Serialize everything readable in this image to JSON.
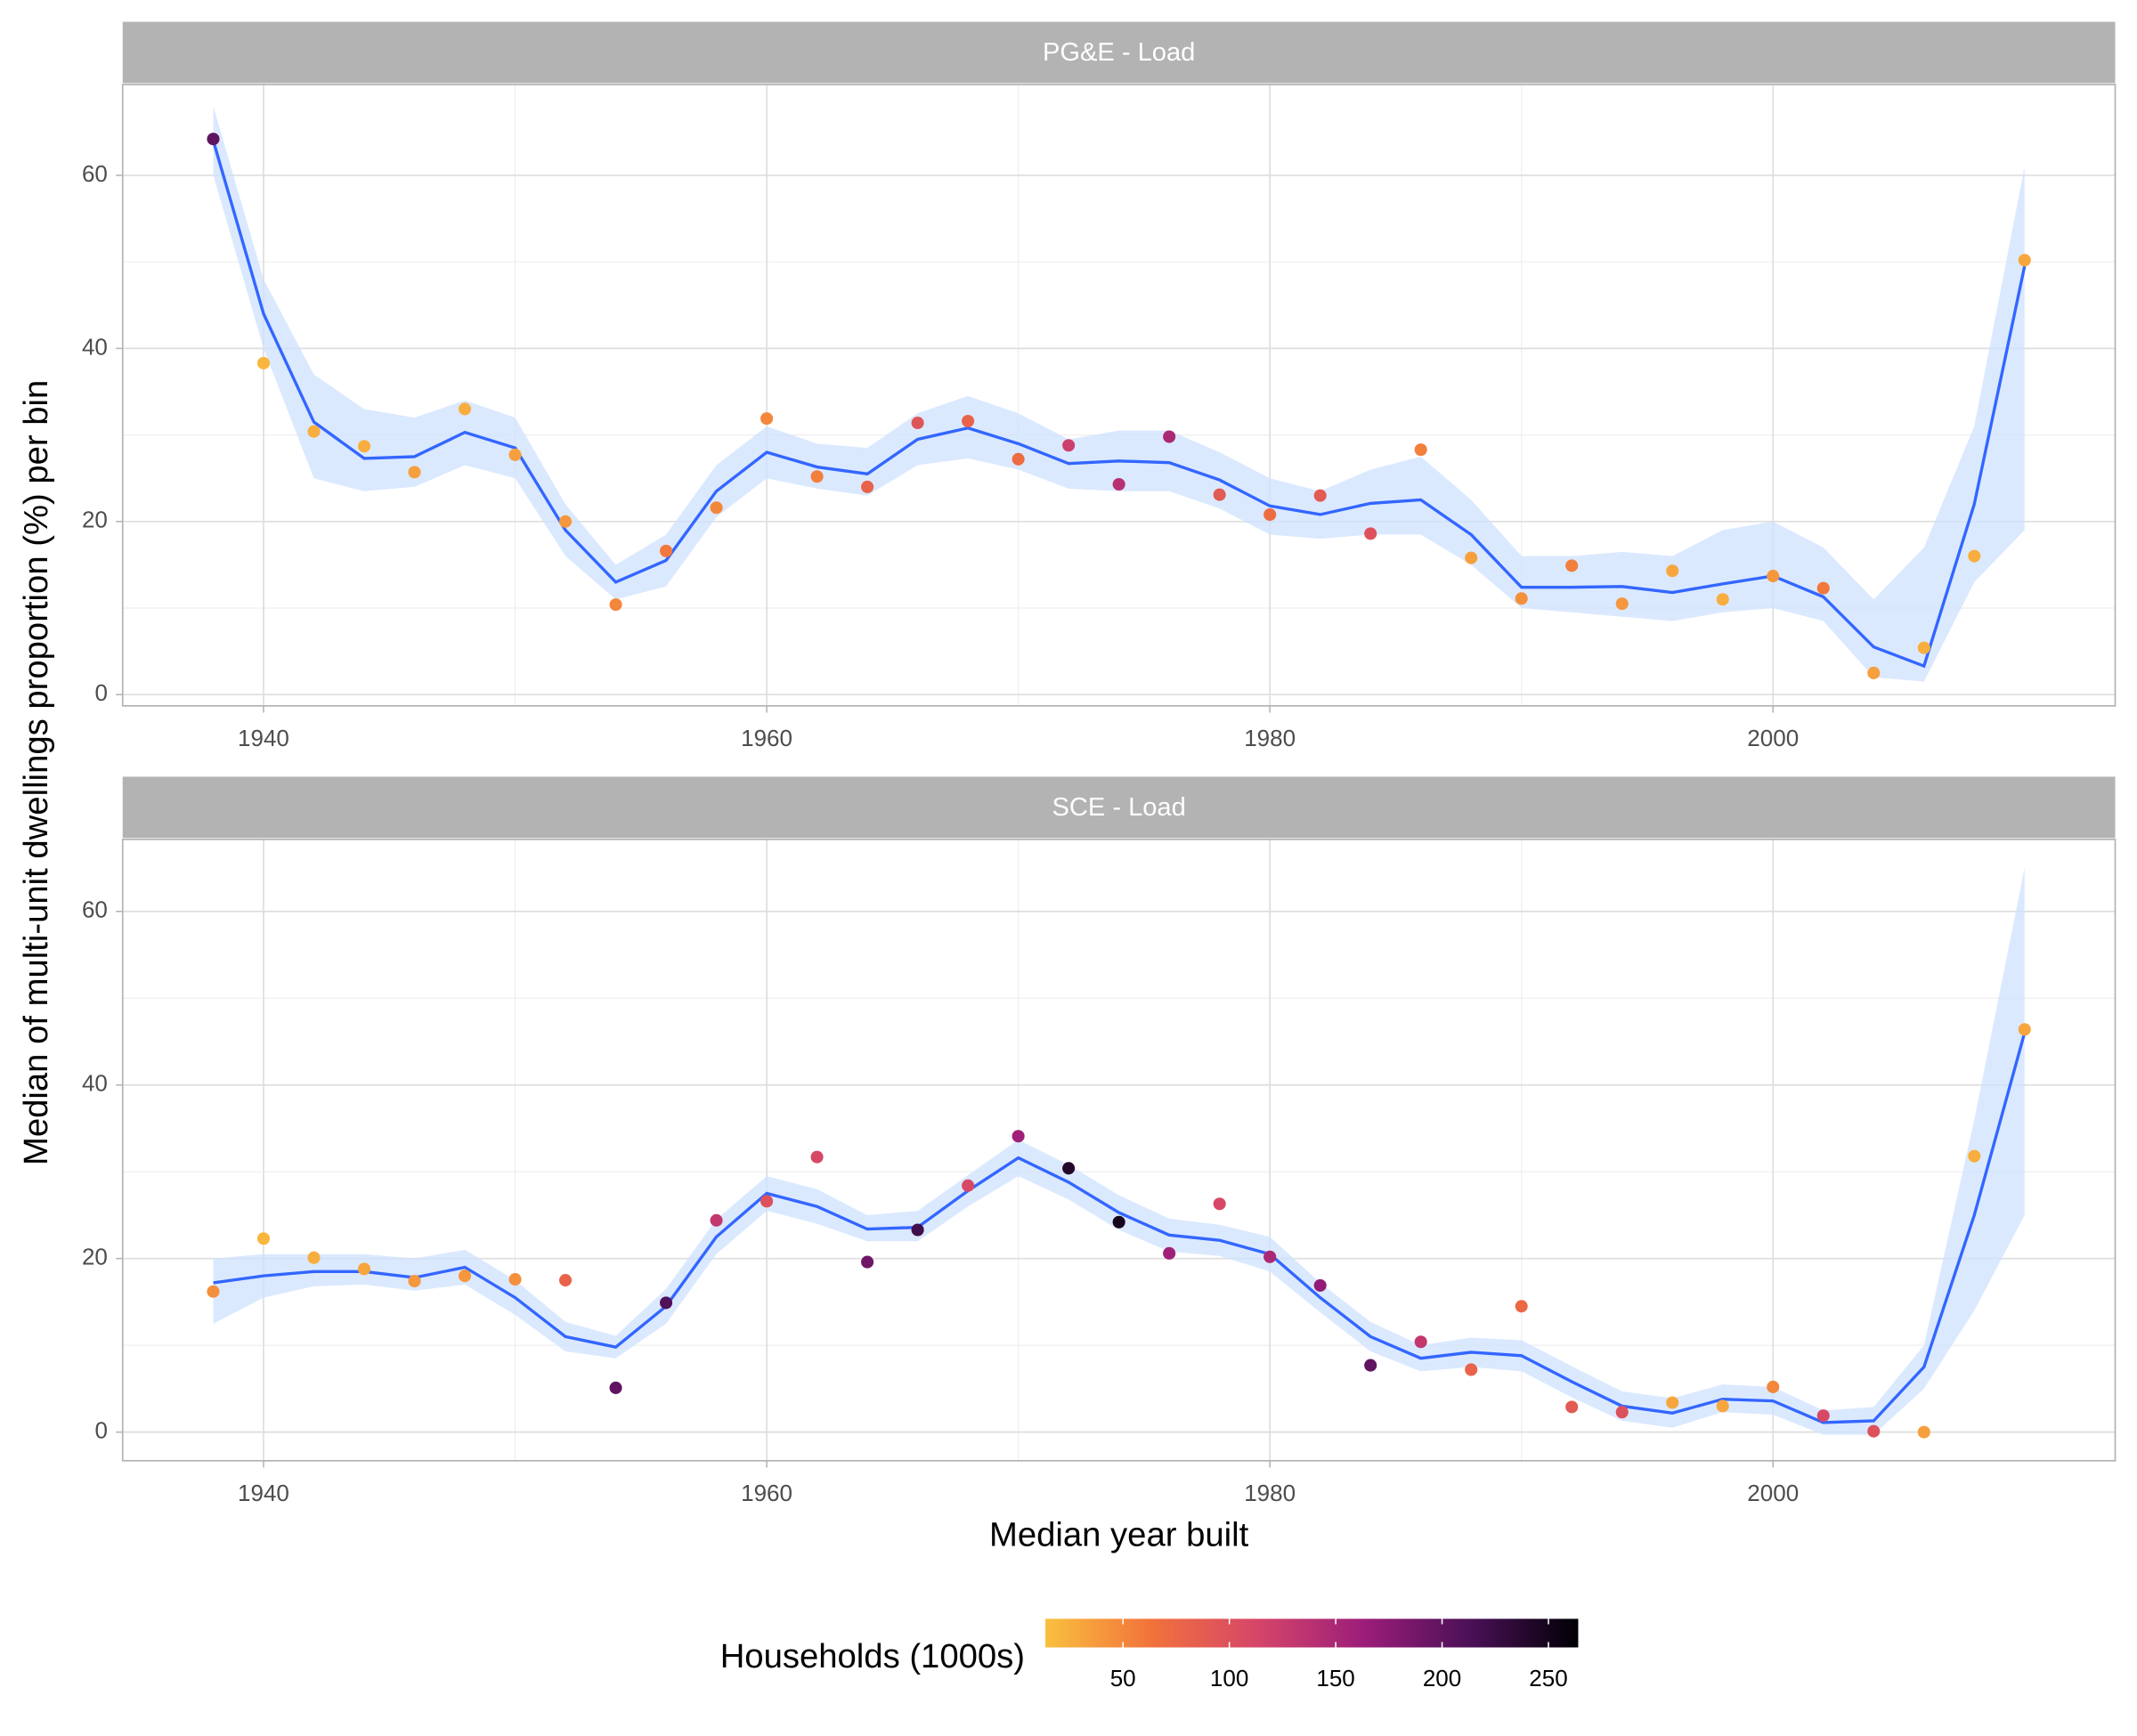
{
  "x_label": "Median year built",
  "y_label": "Median of multi-unit dwellings proportion (%) per bin",
  "colorbar": {
    "title": "Households (1000s)",
    "ticks": [
      50,
      100,
      150,
      200,
      250
    ],
    "lim": [
      13.5,
      264
    ],
    "colors": [
      "#fac03f",
      "#f1723b",
      "#d5456a",
      "#9b1d79",
      "#4a1057",
      "#000004"
    ]
  },
  "chart_data": [
    {
      "type": "scatter",
      "title": "PG&E - Load",
      "x": [
        1938,
        1940,
        1942,
        1944,
        1946,
        1948,
        1950,
        1952,
        1954,
        1956,
        1958,
        1960,
        1962,
        1964,
        1966,
        1968,
        1970,
        1972,
        1974,
        1976,
        1978,
        1980,
        1982,
        1984,
        1986,
        1988,
        1990,
        1992,
        1994,
        1996,
        1998,
        2000,
        2002,
        2004,
        2006,
        2008,
        2010
      ],
      "xlim": [
        1934.4,
        2013.6
      ],
      "xticks": [
        1940,
        1960,
        1980,
        2000
      ],
      "ylim": [
        -1.3,
        70.5
      ],
      "yticks": [
        0,
        20,
        40,
        60
      ],
      "grid": true,
      "points": {
        "values": [
          64.2,
          38.3,
          30.4,
          28.7,
          25.7,
          33.0,
          27.7,
          20.0,
          10.4,
          16.6,
          21.6,
          31.9,
          25.2,
          24.0,
          31.4,
          31.6,
          27.2,
          28.8,
          24.3,
          29.8,
          23.1,
          20.8,
          23.0,
          18.6,
          28.3,
          15.8,
          11.1,
          14.9,
          10.5,
          14.3,
          11.0,
          13.7,
          12.3,
          2.5,
          5.4,
          16.0,
          50.2
        ],
        "households": [
          200,
          20,
          25,
          25,
          35,
          25,
          35,
          40,
          50,
          60,
          50,
          50,
          55,
          80,
          95,
          80,
          70,
          120,
          140,
          150,
          90,
          70,
          90,
          100,
          55,
          35,
          45,
          55,
          40,
          30,
          25,
          40,
          60,
          35,
          25,
          25,
          30
        ]
      },
      "smooth": {
        "color": "#3366ff",
        "band_color": "#cfe2ff",
        "values": [
          64,
          44,
          31.5,
          27.3,
          27.5,
          30.3,
          28.5,
          19,
          13,
          15.5,
          23.5,
          28,
          26.3,
          25.5,
          29.5,
          30.8,
          29,
          26.7,
          27,
          26.8,
          24.8,
          21.8,
          20.8,
          22.1,
          22.5,
          18.5,
          12.4,
          12.4,
          12.5,
          11.8,
          12.8,
          13.7,
          11.3,
          5.5,
          3.3,
          22,
          49.5
        ],
        "lower": [
          60,
          40,
          25,
          23.5,
          24,
          26.5,
          25,
          16,
          11,
          12.5,
          20.5,
          25,
          23.8,
          23,
          26.5,
          27.3,
          26,
          23.8,
          23.5,
          23.5,
          21.5,
          18.5,
          18,
          18.5,
          18.5,
          15,
          10,
          9.5,
          9,
          8.5,
          9.5,
          10,
          8.5,
          2,
          1.5,
          13,
          19
        ],
        "upper": [
          68,
          48,
          37,
          33,
          32,
          34,
          32,
          22,
          15,
          18.5,
          26.5,
          31,
          29,
          28.5,
          32.5,
          34.5,
          32.5,
          29.5,
          30.5,
          30.5,
          28,
          25,
          23.5,
          26,
          27.5,
          22.5,
          16,
          16,
          16.5,
          16,
          19,
          20,
          17,
          11,
          17,
          31,
          61
        ]
      }
    },
    {
      "type": "scatter",
      "title": "SCE - Load",
      "x": [
        1938,
        1940,
        1942,
        1944,
        1946,
        1948,
        1950,
        1952,
        1954,
        1956,
        1958,
        1960,
        1962,
        1964,
        1966,
        1968,
        1970,
        1972,
        1974,
        1976,
        1978,
        1980,
        1982,
        1984,
        1986,
        1988,
        1990,
        1992,
        1994,
        1996,
        1998,
        2000,
        2002,
        2004,
        2006,
        2008,
        2010
      ],
      "xlim": [
        1934.4,
        2013.6
      ],
      "xticks": [
        1940,
        1960,
        1980,
        2000
      ],
      "ylim": [
        -3.3,
        68.3
      ],
      "yticks": [
        0,
        20,
        40,
        60
      ],
      "grid": true,
      "points": {
        "values": [
          16.2,
          22.3,
          20.1,
          18.8,
          17.4,
          18.0,
          17.6,
          17.5,
          5.1,
          14.9,
          24.4,
          26.6,
          31.7,
          19.6,
          23.3,
          28.4,
          34.1,
          30.4,
          24.2,
          20.6,
          26.3,
          20.2,
          16.9,
          7.7,
          10.4,
          7.2,
          14.5,
          2.9,
          2.3,
          3.4,
          3.0,
          5.2,
          1.9,
          0.1,
          0.0,
          31.8,
          46.4
        ],
        "households": [
          45,
          20,
          25,
          30,
          40,
          40,
          45,
          80,
          200,
          210,
          130,
          100,
          110,
          190,
          220,
          110,
          160,
          240,
          250,
          160,
          110,
          150,
          170,
          200,
          130,
          80,
          75,
          90,
          100,
          30,
          30,
          50,
          110,
          100,
          35,
          25,
          30
        ]
      },
      "smooth": {
        "color": "#3366ff",
        "band_color": "#cfe2ff",
        "values": [
          17.2,
          18.0,
          18.5,
          18.5,
          17.8,
          19.0,
          15.5,
          11,
          9.8,
          14.5,
          22.5,
          27.5,
          26,
          23.4,
          23.6,
          27.8,
          31.6,
          28.8,
          25.3,
          22.7,
          22.1,
          20.5,
          15.5,
          11,
          8.5,
          9.2,
          8.8,
          5.8,
          3.0,
          2.2,
          3.8,
          3.6,
          1.1,
          1.3,
          7.5,
          25,
          46
        ],
        "lower": [
          12.5,
          15.5,
          16.8,
          17,
          16.3,
          17,
          13.5,
          9.3,
          8.5,
          12.5,
          20.5,
          25.5,
          24,
          22,
          22,
          26,
          29.5,
          26.8,
          23.3,
          20.8,
          20.3,
          18.5,
          13.8,
          9.3,
          7,
          7.5,
          7,
          4,
          1.3,
          0.5,
          2.3,
          2,
          -0.3,
          -0.3,
          5,
          14,
          25
        ],
        "upper": [
          20,
          20.5,
          20.5,
          20.5,
          20,
          21,
          17.5,
          12.7,
          11.1,
          16.5,
          24.5,
          29.5,
          28,
          25,
          25.5,
          29.6,
          33.7,
          30.8,
          27.3,
          24.6,
          23.9,
          22.5,
          17.2,
          12.7,
          10,
          10.9,
          10.6,
          7.6,
          4.7,
          3.9,
          5.5,
          5.2,
          2.5,
          2.9,
          10,
          36,
          65
        ]
      }
    }
  ]
}
